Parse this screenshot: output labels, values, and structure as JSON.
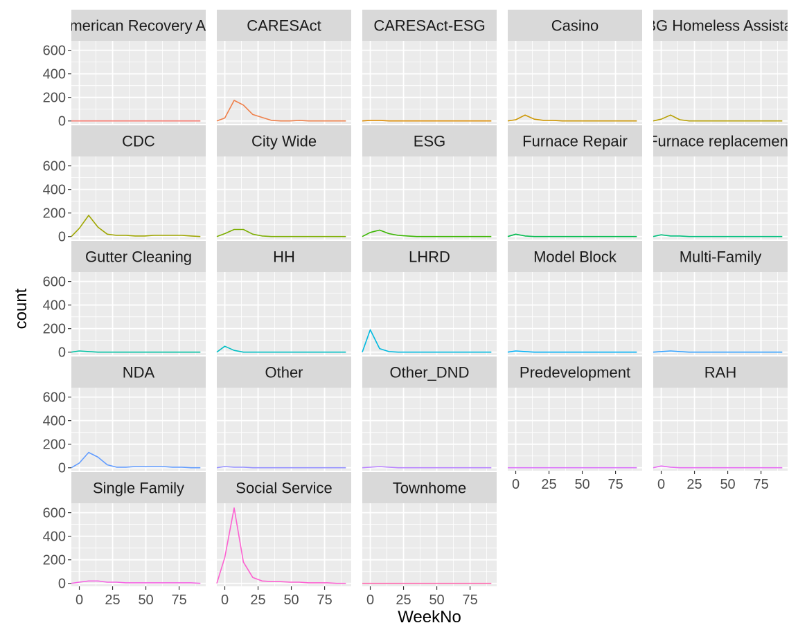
{
  "chart_data": {
    "type": "line",
    "layout": "facet_wrap",
    "xlabel": "WeekNo",
    "ylabel": "count",
    "xlim": [
      -6,
      95
    ],
    "ylim": [
      -25,
      680
    ],
    "x_ticks": [
      0,
      25,
      50,
      75
    ],
    "y_ticks": [
      0,
      200,
      400,
      600
    ],
    "grid": true,
    "legend": "none",
    "panels": [
      {
        "name": "American Recovery Act",
        "color": "#F8766D",
        "x": [
          -6,
          0,
          7,
          14,
          21,
          28,
          35,
          42,
          49,
          56,
          63,
          70,
          77,
          84,
          91
        ],
        "y": [
          0,
          0,
          0,
          0,
          0,
          0,
          0,
          0,
          0,
          0,
          0,
          0,
          0,
          0,
          0
        ]
      },
      {
        "name": "CARESAct",
        "color": "#EF7F49",
        "x": [
          -6,
          0,
          7,
          14,
          21,
          28,
          35,
          42,
          49,
          56,
          63,
          70,
          77,
          84,
          91
        ],
        "y": [
          0,
          25,
          175,
          135,
          55,
          30,
          5,
          0,
          0,
          5,
          0,
          0,
          0,
          0,
          0
        ]
      },
      {
        "name": "CARESAct-ESG",
        "color": "#DE8C00",
        "x": [
          -6,
          0,
          7,
          14,
          21,
          28,
          35,
          42,
          49,
          56,
          63,
          70,
          77,
          84,
          91
        ],
        "y": [
          0,
          5,
          5,
          0,
          0,
          0,
          0,
          0,
          0,
          0,
          0,
          0,
          0,
          0,
          0
        ]
      },
      {
        "name": "Casino",
        "color": "#CD9600",
        "x": [
          -6,
          0,
          7,
          14,
          21,
          28,
          35,
          42,
          49,
          56,
          63,
          70,
          77,
          84,
          91
        ],
        "y": [
          0,
          10,
          50,
          15,
          5,
          5,
          0,
          0,
          0,
          0,
          0,
          0,
          0,
          0,
          0
        ]
      },
      {
        "name": "CDBG Homeless Assistance",
        "color": "#B79F00",
        "x": [
          -6,
          0,
          7,
          14,
          21,
          28,
          35,
          42,
          49,
          56,
          63,
          70,
          77,
          84,
          91
        ],
        "y": [
          0,
          15,
          50,
          10,
          0,
          0,
          0,
          0,
          0,
          0,
          0,
          0,
          0,
          0,
          0
        ]
      },
      {
        "name": "CDC",
        "color": "#9FA600",
        "x": [
          -6,
          0,
          7,
          14,
          21,
          28,
          35,
          42,
          49,
          56,
          63,
          70,
          77,
          84,
          91
        ],
        "y": [
          0,
          70,
          180,
          80,
          20,
          10,
          10,
          5,
          5,
          10,
          10,
          10,
          10,
          5,
          0
        ]
      },
      {
        "name": "City Wide",
        "color": "#7CAE00",
        "x": [
          -6,
          0,
          7,
          14,
          21,
          28,
          35,
          42,
          49,
          56,
          63,
          70,
          77,
          84,
          91
        ],
        "y": [
          0,
          25,
          60,
          60,
          20,
          5,
          0,
          0,
          0,
          0,
          0,
          0,
          0,
          0,
          0
        ]
      },
      {
        "name": "ESG",
        "color": "#39B600",
        "x": [
          -6,
          0,
          7,
          14,
          21,
          28,
          35,
          42,
          49,
          56,
          63,
          70,
          77,
          84,
          91
        ],
        "y": [
          0,
          35,
          55,
          25,
          10,
          5,
          0,
          0,
          0,
          0,
          0,
          0,
          0,
          0,
          0
        ]
      },
      {
        "name": "Furnace Repair",
        "color": "#00BB4E",
        "x": [
          -6,
          0,
          7,
          14,
          21,
          28,
          35,
          42,
          49,
          56,
          63,
          70,
          77,
          84,
          91
        ],
        "y": [
          0,
          20,
          5,
          0,
          0,
          0,
          0,
          0,
          0,
          0,
          0,
          0,
          0,
          0,
          0
        ]
      },
      {
        "name": "Furnace replacement",
        "color": "#00BF7D",
        "x": [
          -6,
          0,
          7,
          14,
          21,
          28,
          35,
          42,
          49,
          56,
          63,
          70,
          77,
          84,
          91
        ],
        "y": [
          0,
          15,
          5,
          5,
          0,
          0,
          0,
          0,
          0,
          0,
          0,
          0,
          0,
          0,
          0
        ]
      },
      {
        "name": "Gutter Cleaning",
        "color": "#00C1A3",
        "x": [
          -6,
          0,
          7,
          14,
          21,
          28,
          35,
          42,
          49,
          56,
          63,
          70,
          77,
          84,
          91
        ],
        "y": [
          0,
          10,
          5,
          0,
          0,
          0,
          0,
          0,
          0,
          0,
          0,
          0,
          0,
          0,
          0
        ]
      },
      {
        "name": "HH",
        "color": "#00BFC4",
        "x": [
          -6,
          0,
          7,
          14,
          21,
          28,
          35,
          42,
          49,
          56,
          63,
          70,
          77,
          84,
          91
        ],
        "y": [
          0,
          50,
          15,
          0,
          0,
          0,
          0,
          0,
          0,
          0,
          0,
          0,
          0,
          0,
          0
        ]
      },
      {
        "name": "LHRD",
        "color": "#00BAE0",
        "x": [
          -6,
          0,
          7,
          14,
          21,
          28,
          35,
          42,
          49,
          56,
          63,
          70,
          77,
          84,
          91
        ],
        "y": [
          0,
          190,
          30,
          5,
          0,
          0,
          0,
          0,
          0,
          0,
          0,
          0,
          0,
          0,
          0
        ]
      },
      {
        "name": "Model Block",
        "color": "#00B0F6",
        "x": [
          -6,
          0,
          7,
          14,
          21,
          28,
          35,
          42,
          49,
          56,
          63,
          70,
          77,
          84,
          91
        ],
        "y": [
          0,
          10,
          5,
          0,
          0,
          0,
          0,
          0,
          0,
          0,
          0,
          0,
          0,
          0,
          0
        ]
      },
      {
        "name": "Multi-Family",
        "color": "#35A2FF",
        "x": [
          -6,
          0,
          7,
          14,
          21,
          28,
          35,
          42,
          49,
          56,
          63,
          70,
          77,
          84,
          91
        ],
        "y": [
          0,
          5,
          10,
          5,
          0,
          0,
          0,
          0,
          0,
          0,
          0,
          0,
          0,
          0,
          0
        ]
      },
      {
        "name": "NDA",
        "color": "#619CFF",
        "x": [
          -6,
          0,
          7,
          14,
          21,
          28,
          35,
          42,
          49,
          56,
          63,
          70,
          77,
          84,
          91
        ],
        "y": [
          0,
          40,
          130,
          90,
          25,
          5,
          5,
          10,
          10,
          10,
          10,
          5,
          5,
          0,
          0
        ]
      },
      {
        "name": "Other",
        "color": "#9590FF",
        "x": [
          -6,
          0,
          7,
          14,
          21,
          28,
          35,
          42,
          49,
          56,
          63,
          70,
          77,
          84,
          91
        ],
        "y": [
          0,
          10,
          5,
          5,
          0,
          0,
          0,
          0,
          0,
          0,
          0,
          0,
          0,
          0,
          0
        ]
      },
      {
        "name": "Other_DND",
        "color": "#B983FF",
        "x": [
          -6,
          0,
          7,
          14,
          21,
          28,
          35,
          42,
          49,
          56,
          63,
          70,
          77,
          84,
          91
        ],
        "y": [
          0,
          5,
          10,
          5,
          0,
          0,
          0,
          0,
          0,
          0,
          0,
          0,
          0,
          0,
          0
        ]
      },
      {
        "name": "Predevelopment",
        "color": "#DB72FB",
        "x": [
          -6,
          0,
          7,
          14,
          21,
          28,
          35,
          42,
          49,
          56,
          63,
          70,
          77,
          84,
          91
        ],
        "y": [
          0,
          0,
          0,
          0,
          0,
          0,
          0,
          0,
          0,
          0,
          0,
          0,
          0,
          0,
          0
        ]
      },
      {
        "name": "RAH",
        "color": "#E76BF3",
        "x": [
          -6,
          0,
          7,
          14,
          21,
          28,
          35,
          42,
          49,
          56,
          63,
          70,
          77,
          84,
          91
        ],
        "y": [
          0,
          15,
          5,
          0,
          0,
          0,
          0,
          0,
          0,
          0,
          0,
          0,
          0,
          0,
          0
        ]
      },
      {
        "name": "Single Family",
        "color": "#F564E3",
        "x": [
          -6,
          0,
          7,
          14,
          21,
          28,
          35,
          42,
          49,
          56,
          63,
          70,
          77,
          84,
          91
        ],
        "y": [
          0,
          10,
          20,
          20,
          10,
          10,
          5,
          5,
          5,
          5,
          5,
          5,
          5,
          5,
          0
        ]
      },
      {
        "name": "Social Service",
        "color": "#FD61D1",
        "x": [
          -6,
          0,
          7,
          14,
          21,
          28,
          35,
          42,
          49,
          56,
          63,
          70,
          77,
          84,
          91
        ],
        "y": [
          0,
          220,
          640,
          180,
          50,
          20,
          15,
          15,
          10,
          10,
          5,
          5,
          5,
          0,
          0
        ]
      },
      {
        "name": "Townhome",
        "color": "#FF65AC",
        "x": [
          -6,
          0,
          7,
          14,
          21,
          28,
          35,
          42,
          49,
          56,
          63,
          70,
          77,
          84,
          91
        ],
        "y": [
          0,
          0,
          0,
          0,
          0,
          0,
          0,
          0,
          0,
          0,
          0,
          0,
          0,
          0,
          0
        ]
      }
    ]
  }
}
